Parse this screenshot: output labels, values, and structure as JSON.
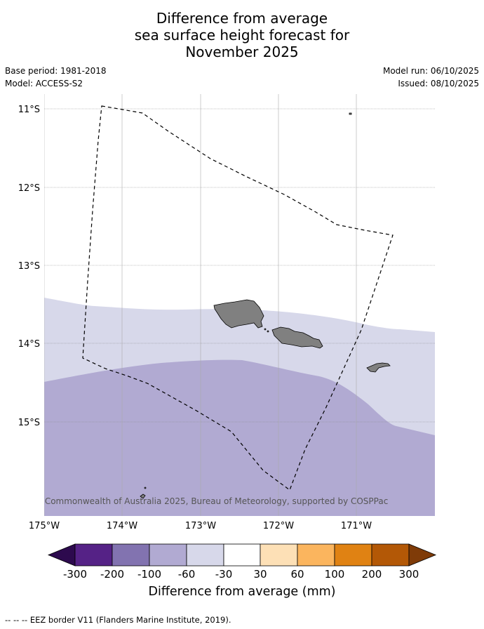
{
  "title": {
    "line1": "Difference from average",
    "line2": "sea surface height forecast for",
    "line3": "November 2025"
  },
  "meta": {
    "base_period": "Base period: 1981-2018",
    "model": "Model: ACCESS-S2",
    "model_run": "Model run: 06/10/2025",
    "issued": "Issued: 08/10/2025"
  },
  "map": {
    "lat_labels": [
      "11°S",
      "12°S",
      "13°S",
      "14°S",
      "15°S"
    ],
    "lon_labels": [
      "175°W",
      "174°W",
      "173°W",
      "172°W",
      "171°W"
    ],
    "copyright": "© Commonwealth of Australia 2025, Bureau of Meteorology, supported by COSPPac",
    "colors": {
      "band_light": "#d7d8ea",
      "band_medium": "#b1aad2",
      "land": "#808080",
      "eez_line": "#000000"
    }
  },
  "colorbar": {
    "tick_labels": [
      "-300",
      "-200",
      "-100",
      "-60",
      "-30",
      "30",
      "60",
      "100",
      "200",
      "300"
    ],
    "colors": [
      "#2d0a4e",
      "#552286",
      "#8273b0",
      "#b1aad2",
      "#d7d8ea",
      "#ffffff",
      "#fde0b6",
      "#fbb55e",
      "#e08213",
      "#b35806",
      "#7f3b08"
    ],
    "label": "Difference from average (mm)"
  },
  "footer": "--  --  -- EEZ border V11 (Flanders Marine Institute, 2019)."
}
